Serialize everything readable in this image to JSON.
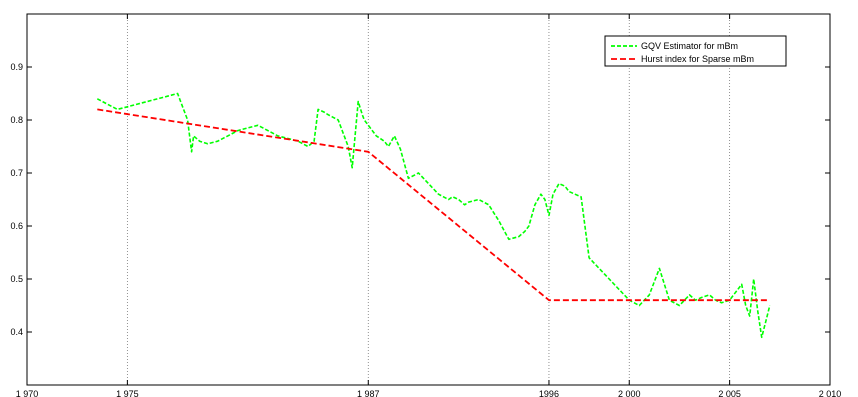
{
  "chart_data": {
    "type": "line",
    "title": "",
    "xlabel": "",
    "ylabel": "",
    "xlim": [
      1970,
      2010
    ],
    "ylim": [
      0.3,
      1.0
    ],
    "x_ticks": [
      1970,
      1975,
      1987,
      1996,
      2000,
      2005,
      2010
    ],
    "x_tick_labels": [
      "1 970",
      "1 975",
      "1 987",
      "1996",
      "2 000",
      "2 005",
      "2 010"
    ],
    "y_ticks": [
      0.4,
      0.5,
      0.6,
      0.7,
      0.8,
      0.9
    ],
    "y_tick_labels": [
      "0.4",
      "0.5",
      "0.6",
      "0.7",
      "0.8",
      "0.9"
    ],
    "grid": "vertical dotted lines at 1975, 1987, 1996, 2000, 2005",
    "legend_position": "top-right",
    "series": [
      {
        "name": "GQV Estimator for mBm",
        "color": "#00ff00",
        "style": "dashed",
        "x": [
          1973.5,
          1974.0,
          1974.5,
          1975.0,
          1975.5,
          1976.0,
          1976.5,
          1977.0,
          1977.5,
          1978.0,
          1978.2,
          1978.3,
          1978.6,
          1979.0,
          1979.5,
          1980.0,
          1980.5,
          1981.0,
          1981.5,
          1982.0,
          1982.5,
          1983.0,
          1983.5,
          1984.0,
          1984.3,
          1984.5,
          1984.8,
          1985.0,
          1985.5,
          1986.0,
          1986.2,
          1986.5,
          1986.7,
          1986.8,
          1987.0,
          1987.2,
          1987.4,
          1987.6,
          1987.8,
          1988.0,
          1988.3,
          1988.6,
          1989.0,
          1989.5,
          1990.0,
          1990.5,
          1991.0,
          1991.2,
          1991.5,
          1991.8,
          1992.0,
          1992.5,
          1993.0,
          1993.5,
          1994.0,
          1994.5,
          1994.8,
          1995.0,
          1995.3,
          1995.6,
          1995.8,
          1996.0,
          1996.2,
          1996.5,
          1996.8,
          1997.0,
          1997.3,
          1997.6,
          1998.0,
          1998.5,
          1999.0,
          1999.5,
          2000.0,
          2000.5,
          2001.0,
          2001.5,
          2002.0,
          2002.5,
          2003.0,
          2003.3,
          2003.6,
          2004.0,
          2004.3,
          2004.6,
          2005.0,
          2005.2,
          2005.4,
          2005.6,
          2005.8,
          2006.0,
          2006.2,
          2006.4,
          2006.6,
          2006.8,
          2007.0
        ],
        "values": [
          0.84,
          0.83,
          0.82,
          0.825,
          0.83,
          0.835,
          0.84,
          0.845,
          0.85,
          0.8,
          0.74,
          0.77,
          0.76,
          0.755,
          0.76,
          0.77,
          0.78,
          0.785,
          0.79,
          0.78,
          0.77,
          0.765,
          0.76,
          0.75,
          0.76,
          0.82,
          0.815,
          0.81,
          0.8,
          0.75,
          0.71,
          0.835,
          0.81,
          0.8,
          0.79,
          0.78,
          0.77,
          0.765,
          0.76,
          0.75,
          0.77,
          0.745,
          0.69,
          0.7,
          0.68,
          0.66,
          0.65,
          0.655,
          0.65,
          0.64,
          0.645,
          0.65,
          0.64,
          0.61,
          0.575,
          0.58,
          0.59,
          0.6,
          0.64,
          0.66,
          0.65,
          0.62,
          0.66,
          0.68,
          0.675,
          0.665,
          0.66,
          0.655,
          0.54,
          0.52,
          0.5,
          0.48,
          0.46,
          0.45,
          0.47,
          0.52,
          0.46,
          0.45,
          0.47,
          0.46,
          0.465,
          0.47,
          0.46,
          0.455,
          0.46,
          0.47,
          0.48,
          0.49,
          0.45,
          0.43,
          0.5,
          0.44,
          0.39,
          0.42,
          0.45
        ]
      },
      {
        "name": "Hurst index for Sparse mBm",
        "color": "#ff0000",
        "style": "dashed",
        "x": [
          1973.5,
          1987.0,
          1996.0,
          2000.0,
          2005.0,
          2007.0
        ],
        "values": [
          0.82,
          0.74,
          0.46,
          0.46,
          0.46,
          0.46
        ]
      }
    ]
  }
}
